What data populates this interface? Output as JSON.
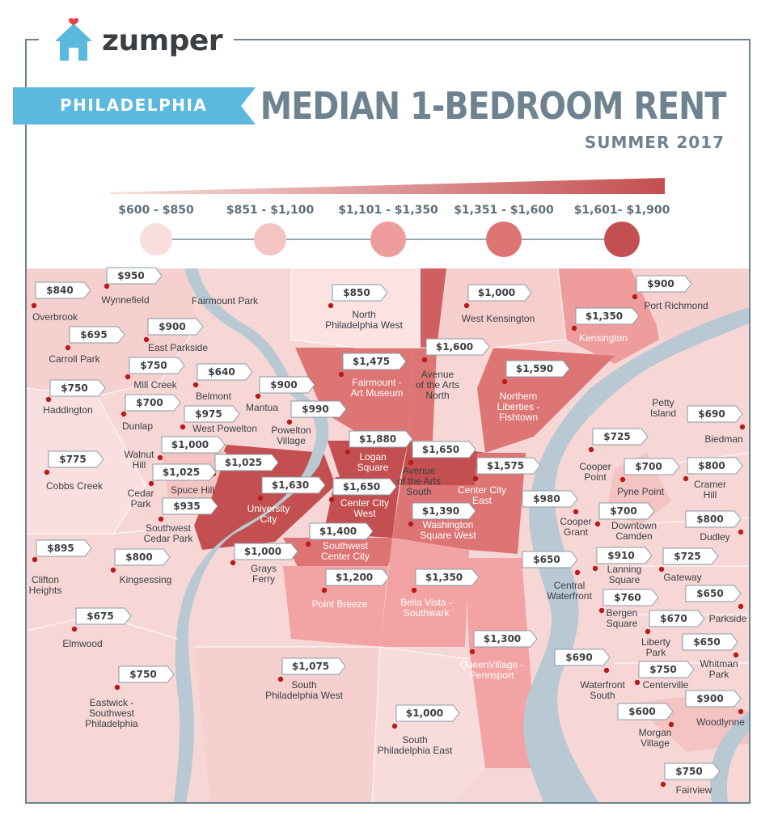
{
  "brand": {
    "logo_text": "zumper"
  },
  "header": {
    "city": "PHILADELPHIA",
    "title": "MEDIAN 1-BEDROOM RENT",
    "subtitle": "SUMMER 2017"
  },
  "legend": {
    "ranges": [
      {
        "label": "$600 - $850",
        "color": "#f8dedd"
      },
      {
        "label": "$851 - $1,100",
        "color": "#f4c4c3"
      },
      {
        "label": "$1,101 - $1,350",
        "color": "#ee9c9c"
      },
      {
        "label": "$1,351 - $1,600",
        "color": "#dd7575"
      },
      {
        "label": "$1,601- $1,900",
        "color": "#c44f50"
      }
    ]
  },
  "colors": {
    "water": "#b9c9d4",
    "accent_blue": "#5bb8de",
    "frame": "#6e8290",
    "marker": "#b71c1c"
  },
  "map_labels": {
    "fairmount_park": "Fairmount Park"
  },
  "neighborhoods": [
    {
      "id": "overbrook",
      "name": [
        "Overbrook"
      ],
      "price": "$840"
    },
    {
      "id": "wynnefield",
      "name": [
        "Wynnefield"
      ],
      "price": "$950"
    },
    {
      "id": "carroll-park",
      "name": [
        "Carroll Park"
      ],
      "price": "$695"
    },
    {
      "id": "east-parkside",
      "name": [
        "East Parkside"
      ],
      "price": "$900"
    },
    {
      "id": "north-philadelphia-west",
      "name": [
        "North",
        "Philadelphia West"
      ],
      "price": "$850"
    },
    {
      "id": "west-kensington",
      "name": [
        "West Kensington"
      ],
      "price": "$1,000"
    },
    {
      "id": "port-richmond",
      "name": [
        "Port Richmond"
      ],
      "price": "$900"
    },
    {
      "id": "kensington",
      "name": [
        "Kensington"
      ],
      "price": "$1,350"
    },
    {
      "id": "haddington",
      "name": [
        "Haddington"
      ],
      "price": "$750"
    },
    {
      "id": "mill-creek",
      "name": [
        "Mill Creek"
      ],
      "price": "$750"
    },
    {
      "id": "belmont",
      "name": [
        "Belmont"
      ],
      "price": "$640"
    },
    {
      "id": "mantua",
      "name": [
        "Mantua"
      ],
      "price": "$900"
    },
    {
      "id": "fairmount-art-museum",
      "name": [
        "Fairmount -",
        "Art Museum"
      ],
      "price": "$1,475"
    },
    {
      "id": "avenue-arts-north",
      "name": [
        "Avenue",
        "of the Arts",
        "North"
      ],
      "price": "$1,600"
    },
    {
      "id": "northern-liberties",
      "name": [
        "Northern",
        "Liberties -",
        "Fishtown"
      ],
      "price": "$1,590"
    },
    {
      "id": "dunlap",
      "name": [
        "Dunlap"
      ],
      "price": "$700"
    },
    {
      "id": "west-powelton",
      "name": [
        "West Powelton"
      ],
      "price": "$975"
    },
    {
      "id": "powelton-village",
      "name": [
        "Powelton",
        "Village"
      ],
      "price": "$990"
    },
    {
      "id": "petty-island",
      "name": [
        "Petty",
        "Island"
      ],
      "price": ""
    },
    {
      "id": "biedman",
      "name": [
        "Biedman"
      ],
      "price": "$690"
    },
    {
      "id": "walnut-hill",
      "name": [
        "Walnut",
        "Hill"
      ],
      "price": "$1,000"
    },
    {
      "id": "logan-square",
      "name": [
        "Logan",
        "Square"
      ],
      "price": "$1,880"
    },
    {
      "id": "avenue-arts-south",
      "name": [
        "Avenue",
        "of the Arts",
        "South"
      ],
      "price": "$1,650"
    },
    {
      "id": "cooper-point",
      "name": [
        "Cooper",
        "Point"
      ],
      "price": "$725"
    },
    {
      "id": "cobbs-creek",
      "name": [
        "Cobbs Creek"
      ],
      "price": "$775"
    },
    {
      "id": "spruce-hill",
      "name": [
        "Spuce Hill"
      ],
      "price": "$1,025"
    },
    {
      "id": "cedar-park",
      "name": [
        "Cedar",
        "Park"
      ],
      "price": "$1,025"
    },
    {
      "id": "center-city-east",
      "name": [
        "Center City",
        "East"
      ],
      "price": "$1,575"
    },
    {
      "id": "pyne-point",
      "name": [
        "Pyne Point"
      ],
      "price": "$700"
    },
    {
      "id": "cramer-hill",
      "name": [
        "Cramer",
        "Hill"
      ],
      "price": "$800"
    },
    {
      "id": "university-city",
      "name": [
        "University",
        "City"
      ],
      "price": "$1,630"
    },
    {
      "id": "center-city-west",
      "name": [
        "Center City",
        "West"
      ],
      "price": "$1,650"
    },
    {
      "id": "washington-square-west",
      "name": [
        "Washington",
        "Square West"
      ],
      "price": "$1,390"
    },
    {
      "id": "cooper-grant",
      "name": [
        "Cooper",
        "Grant"
      ],
      "price": "$980"
    },
    {
      "id": "downtown-camden",
      "name": [
        "Downtown",
        "Camden"
      ],
      "price": "$700"
    },
    {
      "id": "dudley",
      "name": [
        "Dudley"
      ],
      "price": "$800"
    },
    {
      "id": "southwest-cedar-park",
      "name": [
        "Southwest",
        "Cedar Park"
      ],
      "price": "$935"
    },
    {
      "id": "southwest-center-city",
      "name": [
        "Southwest",
        "Center City"
      ],
      "price": "$1,400"
    },
    {
      "id": "clifton-heights",
      "name": [
        "Clifton",
        "Heights"
      ],
      "price": "$895"
    },
    {
      "id": "kingsessing",
      "name": [
        "Kingsessing"
      ],
      "price": "$800"
    },
    {
      "id": "grays-ferry",
      "name": [
        "Grays",
        "Ferry"
      ],
      "price": "$1,000"
    },
    {
      "id": "central-waterfront",
      "name": [
        "Central",
        "Waterfront"
      ],
      "price": "$650"
    },
    {
      "id": "lanning-square",
      "name": [
        "Lanning",
        "Square"
      ],
      "price": "$910"
    },
    {
      "id": "gateway",
      "name": [
        "Gateway"
      ],
      "price": "$725"
    },
    {
      "id": "point-breeze",
      "name": [
        "Point Breeze"
      ],
      "price": "$1,200"
    },
    {
      "id": "bella-vista",
      "name": [
        "Bella Vista -",
        "Southwark"
      ],
      "price": "$1,350"
    },
    {
      "id": "bergen-square",
      "name": [
        "Bergen",
        "Square"
      ],
      "price": "$760"
    },
    {
      "id": "parkside",
      "name": [
        "Parkside"
      ],
      "price": "$650"
    },
    {
      "id": "elmwood",
      "name": [
        "Elmwood"
      ],
      "price": "$675"
    },
    {
      "id": "liberty-park",
      "name": [
        "Liberty",
        "Park"
      ],
      "price": "$670"
    },
    {
      "id": "whitman-park",
      "name": [
        "Whitman",
        "Park"
      ],
      "price": "$650"
    },
    {
      "id": "queen-village",
      "name": [
        "QueenVillage -",
        "Pennsport"
      ],
      "price": "$1,300"
    },
    {
      "id": "waterfront-south",
      "name": [
        "Waterfront",
        "South"
      ],
      "price": "$690"
    },
    {
      "id": "centerville",
      "name": [
        "Centerville"
      ],
      "price": "$750"
    },
    {
      "id": "eastwick",
      "name": [
        "Eastwick -",
        "Southwest",
        "Philadelphia"
      ],
      "price": "$750"
    },
    {
      "id": "south-philadelphia-west",
      "name": [
        "South",
        "Philadelphia West"
      ],
      "price": "$1,075"
    },
    {
      "id": "woodlynne",
      "name": [
        "Woodlynne"
      ],
      "price": "$900"
    },
    {
      "id": "south-philadelphia-east",
      "name": [
        "South",
        "Philadelphia East"
      ],
      "price": "$1,000"
    },
    {
      "id": "morgan-village",
      "name": [
        "Morgan",
        "Village"
      ],
      "price": "$600"
    },
    {
      "id": "fairview",
      "name": [
        "Fairview"
      ],
      "price": "$750"
    }
  ]
}
